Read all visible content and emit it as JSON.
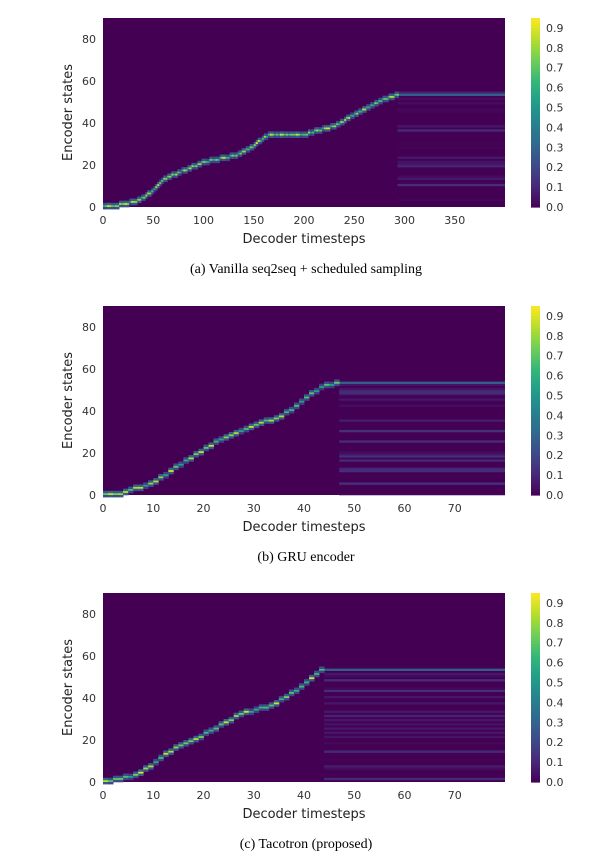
{
  "chart_data": [
    {
      "type": "heatmap",
      "caption": "(a)  Vanilla seq2seq + scheduled sampling",
      "xlabel": "Decoder timesteps",
      "ylabel": "Encoder states",
      "xlim": [
        0,
        400
      ],
      "ylim": [
        0,
        90
      ],
      "xticks": [
        0,
        50,
        100,
        150,
        200,
        250,
        300,
        350
      ],
      "yticks": [
        0,
        20,
        40,
        60,
        80
      ],
      "end_step": 292,
      "end_state": 53,
      "alignment_path": [
        [
          0,
          0
        ],
        [
          10,
          0
        ],
        [
          20,
          1
        ],
        [
          30,
          2
        ],
        [
          40,
          4
        ],
        [
          50,
          8
        ],
        [
          60,
          13
        ],
        [
          70,
          15
        ],
        [
          80,
          17
        ],
        [
          90,
          19
        ],
        [
          100,
          21
        ],
        [
          110,
          22
        ],
        [
          120,
          23
        ],
        [
          130,
          24
        ],
        [
          140,
          26
        ],
        [
          150,
          29
        ],
        [
          160,
          33
        ],
        [
          165,
          34
        ],
        [
          200,
          34
        ],
        [
          220,
          37
        ],
        [
          230,
          38
        ],
        [
          240,
          41
        ],
        [
          250,
          44
        ],
        [
          260,
          46
        ],
        [
          270,
          49
        ],
        [
          280,
          51
        ],
        [
          292,
          53
        ]
      ],
      "colorbar": {
        "min": 0.0,
        "max": 0.95,
        "ticks": [
          "0.0",
          "0.1",
          "0.2",
          "0.3",
          "0.4",
          "0.5",
          "0.6",
          "0.7",
          "0.8",
          "0.9"
        ]
      }
    },
    {
      "type": "heatmap",
      "caption": "(b)  GRU encoder",
      "xlabel": "Decoder timesteps",
      "ylabel": "Encoder states",
      "xlim": [
        0,
        80
      ],
      "ylim": [
        0,
        90
      ],
      "xticks": [
        0,
        10,
        20,
        30,
        40,
        50,
        60,
        70
      ],
      "yticks": [
        0,
        20,
        40,
        60,
        80
      ],
      "end_step": 46,
      "end_state": 53,
      "alignment_path": [
        [
          0,
          0
        ],
        [
          3,
          0
        ],
        [
          5,
          2
        ],
        [
          8,
          4
        ],
        [
          10,
          6
        ],
        [
          13,
          11
        ],
        [
          16,
          16
        ],
        [
          19,
          20
        ],
        [
          22,
          25
        ],
        [
          25,
          28
        ],
        [
          28,
          31
        ],
        [
          31,
          34
        ],
        [
          34,
          36
        ],
        [
          37,
          40
        ],
        [
          40,
          46
        ],
        [
          43,
          51
        ],
        [
          46,
          53
        ]
      ],
      "colorbar": {
        "min": 0.0,
        "max": 0.95,
        "ticks": [
          "0.0",
          "0.1",
          "0.2",
          "0.3",
          "0.4",
          "0.5",
          "0.6",
          "0.7",
          "0.8",
          "0.9"
        ]
      }
    },
    {
      "type": "heatmap",
      "caption": "(c)  Tacotron (proposed)",
      "xlabel": "Decoder timesteps",
      "ylabel": "Encoder states",
      "xlim": [
        0,
        80
      ],
      "ylim": [
        0,
        90
      ],
      "xticks": [
        0,
        10,
        20,
        30,
        40,
        50,
        60,
        70
      ],
      "yticks": [
        0,
        20,
        40,
        60,
        80
      ],
      "end_step": 43,
      "end_state": 53,
      "alignment_path": [
        [
          0,
          0
        ],
        [
          3,
          1
        ],
        [
          6,
          3
        ],
        [
          9,
          7
        ],
        [
          12,
          13
        ],
        [
          15,
          17
        ],
        [
          18,
          20
        ],
        [
          21,
          24
        ],
        [
          24,
          28
        ],
        [
          27,
          32
        ],
        [
          30,
          34
        ],
        [
          33,
          36
        ],
        [
          36,
          40
        ],
        [
          39,
          45
        ],
        [
          42,
          51
        ],
        [
          43,
          53
        ]
      ],
      "colorbar": {
        "min": 0.0,
        "max": 0.95,
        "ticks": [
          "0.0",
          "0.1",
          "0.2",
          "0.3",
          "0.4",
          "0.5",
          "0.6",
          "0.7",
          "0.8",
          "0.9"
        ]
      }
    }
  ]
}
